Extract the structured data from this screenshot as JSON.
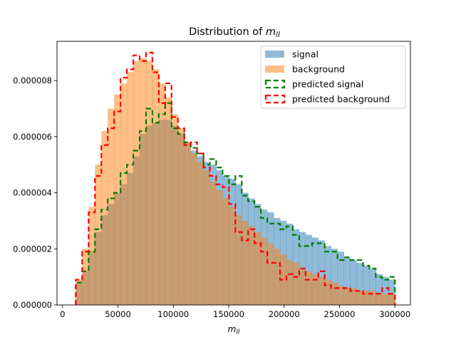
{
  "chart_data": {
    "type": "histogram",
    "title": "Distribution of m_ll",
    "title_prefix": "Distribution of ",
    "title_var": "m",
    "title_sub": "ll",
    "xlabel_var": "m",
    "xlabel_sub": "ll",
    "ylabel": "",
    "xlim": [
      -5000,
      314000
    ],
    "ylim": [
      0,
      9.4e-06
    ],
    "x_ticks": [
      0,
      50000,
      100000,
      150000,
      200000,
      250000,
      300000
    ],
    "x_tick_labels": [
      "0",
      "50000",
      "100000",
      "150000",
      "200000",
      "250000",
      "300000"
    ],
    "y_ticks": [
      0,
      2e-06,
      4e-06,
      6e-06,
      8e-06
    ],
    "y_tick_labels": [
      "0.000000",
      "0.000002",
      "0.000004",
      "0.000006",
      "0.000008"
    ],
    "grid": false,
    "legend_position": "top-right",
    "bin_edges": [
      12000,
      17760,
      23520,
      29280,
      35040,
      40800,
      46560,
      52320,
      58080,
      63840,
      69600,
      75360,
      81120,
      86880,
      92640,
      98400,
      104160,
      109920,
      115680,
      121440,
      127200,
      132960,
      138720,
      144480,
      150240,
      156000,
      161760,
      167520,
      173280,
      179040,
      184800,
      190560,
      196320,
      202080,
      207840,
      213600,
      219360,
      225120,
      230880,
      236640,
      242400,
      248160,
      253920,
      259680,
      265440,
      271200,
      276960,
      282720,
      288480,
      294240,
      300000
    ],
    "series": [
      {
        "name": "signal",
        "style": "filled",
        "color": "#1f77b4",
        "alpha": 0.5,
        "values": [
          8e-07,
          1.2e-06,
          1.9e-06,
          2.6e-06,
          3.2e-06,
          3.6e-06,
          4e-06,
          4.3e-06,
          4.7e-06,
          5.3e-06,
          6.1e-06,
          6.4e-06,
          6.5e-06,
          6.6e-06,
          6.6e-06,
          6.4e-06,
          6.1e-06,
          5.8e-06,
          5.5e-06,
          5.3e-06,
          5.1e-06,
          5e-06,
          4.8e-06,
          4.6e-06,
          4.5e-06,
          4.3e-06,
          4e-06,
          3.8e-06,
          3.6e-06,
          3.4e-06,
          3.3e-06,
          3.1e-06,
          3e-06,
          2.9e-06,
          2.7e-06,
          2.6e-06,
          2.5e-06,
          2.4e-06,
          2.3e-06,
          2.1e-06,
          2e-06,
          1.9e-06,
          1.7e-06,
          1.6e-06,
          1.5e-06,
          1.4e-06,
          1.3e-06,
          1.1e-06,
          1e-06,
          9e-07
        ]
      },
      {
        "name": "background",
        "style": "filled",
        "color": "#ff7f0e",
        "alpha": 0.5,
        "values": [
          9e-07,
          2e-06,
          3.5e-06,
          5e-06,
          6.2e-06,
          7e-06,
          7.5e-06,
          7.9e-06,
          8.3e-06,
          8.7e-06,
          8.8e-06,
          8.7e-06,
          8.4e-06,
          7.9e-06,
          7.4e-06,
          6.8e-06,
          6.3e-06,
          5.8e-06,
          5.4e-06,
          5.1e-06,
          4.8e-06,
          4.4e-06,
          4.1e-06,
          3.8e-06,
          3.5e-06,
          3.2e-06,
          3e-06,
          2.8e-06,
          2.6e-06,
          2.4e-06,
          2.2e-06,
          2e-06,
          1.8e-06,
          1.6e-06,
          1.5e-06,
          1.3e-06,
          1.2e-06,
          1.1e-06,
          1e-06,
          9e-07,
          8e-07,
          7e-07,
          6e-07,
          6e-07,
          5e-07,
          5e-07,
          5e-07,
          4e-07,
          4e-07,
          4e-07
        ]
      },
      {
        "name": "predicted signal",
        "style": "step",
        "color": "#008000",
        "values": [
          8e-07,
          1.2e-06,
          1.9e-06,
          2.7e-06,
          3.4e-06,
          3.8e-06,
          4e-06,
          4.7e-06,
          5e-06,
          5.5e-06,
          6.2e-06,
          7e-06,
          6.5e-06,
          6.8e-06,
          7.2e-06,
          6.3e-06,
          6.1e-06,
          5.8e-06,
          5.6e-06,
          5.4e-06,
          5e-06,
          5.2e-06,
          4.9e-06,
          4.6e-06,
          4.3e-06,
          4.6e-06,
          3.9e-06,
          3.7e-06,
          3.5e-06,
          3.1e-06,
          2.9e-06,
          2.9e-06,
          2.7e-06,
          2.8e-06,
          2.5e-06,
          2.1e-06,
          2.1e-06,
          2.2e-06,
          2.2e-06,
          1.9e-06,
          1.9e-06,
          1.6e-06,
          1.7e-06,
          1.6e-06,
          1.6e-06,
          1.4e-06,
          1.3e-06,
          1e-06,
          9e-07,
          1e-06
        ]
      },
      {
        "name": "predicted background",
        "style": "step",
        "color": "#ff0000",
        "values": [
          9e-07,
          1.9e-06,
          3.3e-06,
          4.6e-06,
          5.7e-06,
          6.3e-06,
          6.9e-06,
          8.1e-06,
          8.4e-06,
          8.9e-06,
          8.7e-06,
          9e-06,
          8.3e-06,
          7.2e-06,
          7.9e-06,
          6.7e-06,
          6.3e-06,
          5.7e-06,
          5.8e-06,
          5.4e-06,
          4.9e-06,
          4.6e-06,
          4.3e-06,
          4.2e-06,
          3.6e-06,
          2.6e-06,
          2.3e-06,
          2.7e-06,
          2.2e-06,
          1.9e-06,
          1.5e-06,
          1.5e-06,
          9e-07,
          1.1e-06,
          1e-06,
          1.3e-06,
          9e-07,
          9e-07,
          1.2e-06,
          7e-07,
          6e-07,
          6e-07,
          6e-07,
          5e-07,
          5e-07,
          4e-07,
          4e-07,
          4e-07,
          6e-07,
          4e-07
        ]
      }
    ]
  }
}
